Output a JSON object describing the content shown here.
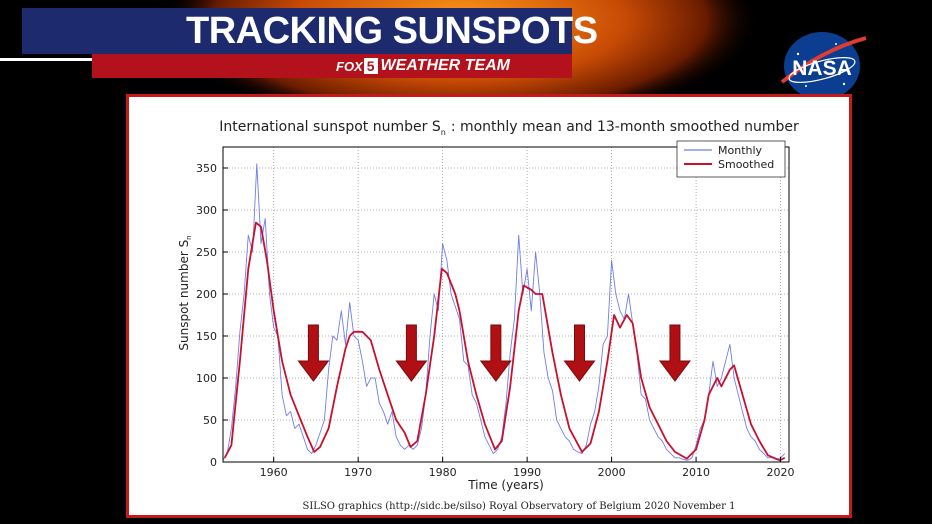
{
  "banner": {
    "title": "TRACKING SUNSPOTS",
    "brand_fox": "FOX",
    "brand_number": "5",
    "brand_team": "WEATHER TEAM",
    "colors": {
      "navy": "#1d2b6e",
      "red": "#b3121d"
    }
  },
  "logo": {
    "text": "NASA",
    "icon": "nasa-meatball-icon"
  },
  "chart_data": {
    "type": "line",
    "title": "International sunspot number S",
    "title_subscript": "n",
    "title_suffix": ": monthly mean and 13-month smoothed number",
    "xlabel": "Time (years)",
    "ylabel": "Sunspot number S",
    "ylabel_subscript": "n",
    "xlim": [
      1954,
      2021
    ],
    "ylim": [
      0,
      375
    ],
    "xticks": [
      1960,
      1970,
      1980,
      1990,
      2000,
      2010,
      2020
    ],
    "yticks": [
      0,
      50,
      100,
      150,
      200,
      250,
      300,
      350
    ],
    "grid": true,
    "legend_position": "top-right",
    "footer": "SILSO graphics (http://sidc.be/silso)  Royal Observatory of Belgium  2020 November 1",
    "series": [
      {
        "name": "Monthly",
        "color": "#6f7fe8",
        "x": [
          1954.0,
          1954.5,
          1955.0,
          1955.5,
          1956.0,
          1956.5,
          1957.0,
          1957.5,
          1958.0,
          1958.5,
          1959.0,
          1959.5,
          1960.0,
          1960.5,
          1961.0,
          1961.5,
          1962.0,
          1962.5,
          1963.0,
          1963.5,
          1964.0,
          1964.5,
          1965.0,
          1965.5,
          1966.0,
          1966.5,
          1967.0,
          1967.5,
          1968.0,
          1968.5,
          1969.0,
          1969.5,
          1970.0,
          1970.5,
          1971.0,
          1971.5,
          1972.0,
          1972.5,
          1973.0,
          1973.5,
          1974.0,
          1974.5,
          1975.0,
          1975.5,
          1976.0,
          1976.5,
          1977.0,
          1977.5,
          1978.0,
          1978.5,
          1979.0,
          1979.5,
          1980.0,
          1980.5,
          1981.0,
          1981.5,
          1982.0,
          1982.5,
          1983.0,
          1983.5,
          1984.0,
          1984.5,
          1985.0,
          1985.5,
          1986.0,
          1986.5,
          1987.0,
          1987.5,
          1988.0,
          1988.5,
          1989.0,
          1989.5,
          1990.0,
          1990.5,
          1991.0,
          1991.5,
          1992.0,
          1992.5,
          1993.0,
          1993.5,
          1994.0,
          1994.5,
          1995.0,
          1995.5,
          1996.0,
          1996.5,
          1997.0,
          1997.5,
          1998.0,
          1998.5,
          1999.0,
          1999.5,
          2000.0,
          2000.5,
          2001.0,
          2001.5,
          2002.0,
          2002.5,
          2003.0,
          2003.5,
          2004.0,
          2004.5,
          2005.0,
          2005.5,
          2006.0,
          2006.5,
          2007.0,
          2007.5,
          2008.0,
          2008.5,
          2009.0,
          2009.5,
          2010.0,
          2010.5,
          2011.0,
          2011.5,
          2012.0,
          2012.5,
          2013.0,
          2013.5,
          2014.0,
          2014.5,
          2015.0,
          2015.5,
          2016.0,
          2016.5,
          2017.0,
          2017.5,
          2018.0,
          2018.5,
          2019.0,
          2019.5,
          2020.0,
          2020.5
        ],
        "y": [
          2,
          10,
          40,
          90,
          155,
          200,
          270,
          250,
          355,
          260,
          290,
          200,
          160,
          150,
          80,
          55,
          60,
          40,
          45,
          30,
          15,
          10,
          20,
          35,
          50,
          110,
          150,
          145,
          180,
          140,
          190,
          150,
          145,
          120,
          90,
          100,
          100,
          70,
          60,
          45,
          60,
          30,
          20,
          15,
          20,
          15,
          20,
          40,
          80,
          150,
          200,
          180,
          260,
          240,
          200,
          185,
          170,
          120,
          115,
          80,
          70,
          50,
          30,
          20,
          10,
          15,
          30,
          70,
          130,
          170,
          270,
          200,
          230,
          180,
          250,
          200,
          130,
          100,
          85,
          50,
          40,
          30,
          25,
          15,
          12,
          10,
          20,
          45,
          60,
          90,
          140,
          150,
          240,
          200,
          180,
          170,
          200,
          165,
          130,
          80,
          75,
          50,
          40,
          30,
          25,
          15,
          10,
          5,
          5,
          3,
          2,
          5,
          20,
          40,
          50,
          80,
          120,
          90,
          100,
          120,
          140,
          100,
          80,
          60,
          40,
          30,
          25,
          15,
          10,
          5,
          5,
          3,
          5,
          10
        ]
      },
      {
        "name": "Smoothed",
        "color": "#c8102e",
        "x": [
          1954.2,
          1955.0,
          1956.0,
          1957.0,
          1957.9,
          1958.5,
          1959.2,
          1960.0,
          1961.0,
          1962.0,
          1963.0,
          1964.0,
          1964.8,
          1965.5,
          1966.5,
          1967.5,
          1968.5,
          1969.0,
          1969.5,
          1970.5,
          1971.0,
          1971.5,
          1972.5,
          1973.5,
          1974.5,
          1975.5,
          1976.2,
          1977.0,
          1978.0,
          1979.0,
          1979.9,
          1980.5,
          1981.5,
          1982.0,
          1983.0,
          1984.0,
          1985.0,
          1986.2,
          1987.0,
          1988.0,
          1989.0,
          1989.6,
          1990.5,
          1991.0,
          1991.8,
          1993.0,
          1994.0,
          1995.0,
          1996.5,
          1997.5,
          1998.5,
          1999.5,
          2000.3,
          2001.0,
          2001.8,
          2002.5,
          2003.5,
          2004.5,
          2005.5,
          2006.5,
          2007.5,
          2008.9,
          2010.0,
          2011.0,
          2011.5,
          2012.5,
          2013.0,
          2014.0,
          2014.5,
          2015.5,
          2016.5,
          2017.5,
          2018.5,
          2019.9,
          2020.5
        ],
        "y": [
          5,
          20,
          120,
          230,
          285,
          280,
          240,
          180,
          120,
          80,
          55,
          30,
          12,
          18,
          40,
          90,
          135,
          150,
          155,
          155,
          150,
          145,
          110,
          80,
          50,
          35,
          18,
          25,
          80,
          150,
          230,
          225,
          200,
          180,
          120,
          80,
          45,
          15,
          25,
          90,
          180,
          210,
          205,
          200,
          200,
          130,
          80,
          40,
          12,
          22,
          60,
          120,
          175,
          160,
          175,
          165,
          100,
          65,
          45,
          25,
          12,
          4,
          15,
          50,
          80,
          100,
          90,
          110,
          115,
          80,
          45,
          25,
          8,
          2,
          5
        ]
      }
    ]
  }
}
